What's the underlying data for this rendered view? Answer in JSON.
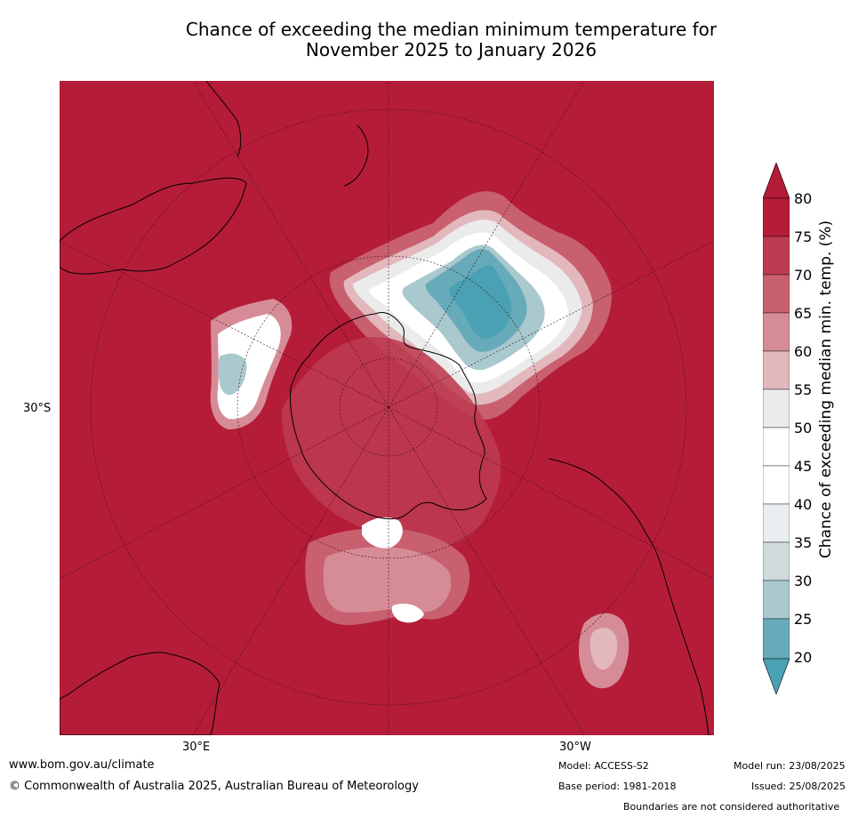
{
  "title_line1": "Chance of exceeding the median minimum temperature for",
  "title_line2": "November 2025 to January 2026",
  "map": {
    "lat_label": "30°S",
    "lon_label_left": "30°E",
    "lon_label_right": "30°W"
  },
  "colorbar": {
    "label": "Chance of exceeding median min. temp. (%)",
    "ticks": [
      "80",
      "75",
      "70",
      "65",
      "60",
      "55",
      "50",
      "45",
      "40",
      "35",
      "30",
      "25",
      "20"
    ],
    "band_colors": [
      "#b51c38",
      "#bd3b51",
      "#c8606f",
      "#d68c96",
      "#e2b8bd",
      "#ebebeb",
      "#ffffff",
      "#ffffff",
      "#e8eef1",
      "#cfdadd",
      "#a9c9cf",
      "#88bac6",
      "#67aab9",
      "#4aa1b4"
    ],
    "extend_low_color": "#4aa1b4",
    "extend_high_color": "#b51c38"
  },
  "footer": {
    "website": "www.bom.gov.au/climate",
    "copyright": "© Commonwealth of Australia 2025, Australian Bureau of Meteorology",
    "model": "Model: ACCESS-S2",
    "base_period": "Base period: 1981-2018",
    "model_run": "Model run: 23/08/2025",
    "issued": "Issued: 25/08/2025",
    "disclaimer": "Boundaries are not considered authoritative"
  }
}
